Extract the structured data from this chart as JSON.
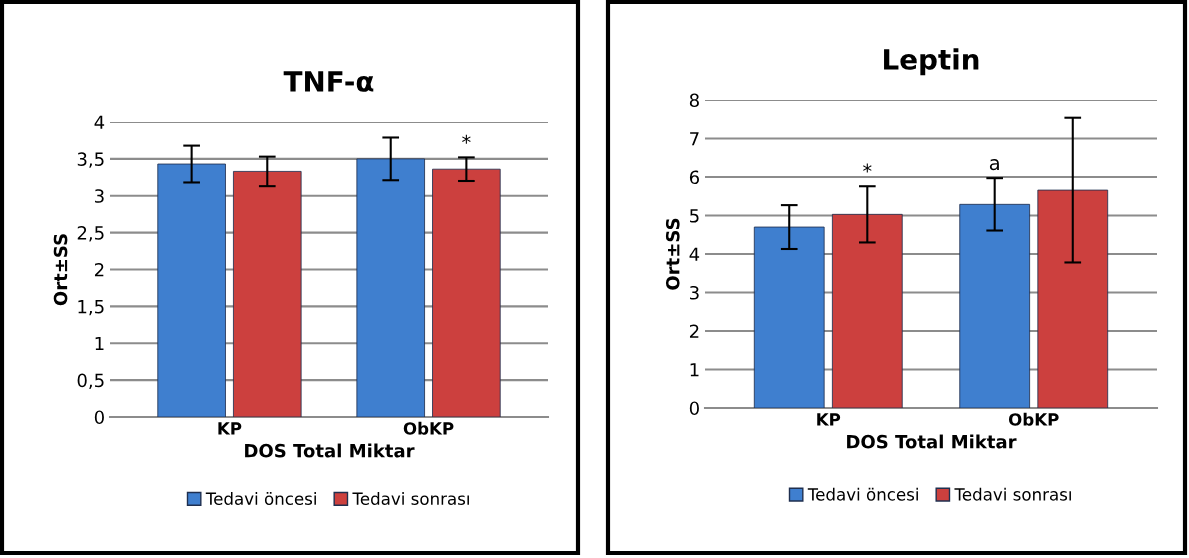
{
  "chart_data": [
    {
      "type": "bar",
      "title": "TNF-α",
      "xlabel": "DOS Total Miktar",
      "ylabel": "Ort±SS",
      "categories": [
        "KP",
        "ObKP"
      ],
      "series": [
        {
          "name": "Tedavi öncesi",
          "color": "#3f7fcf",
          "values": [
            3.43,
            3.5
          ],
          "errors": [
            0.25,
            0.29
          ]
        },
        {
          "name": "Tedavi sonrası",
          "color": "#cc403e",
          "values": [
            3.33,
            3.36
          ],
          "errors": [
            0.2,
            0.16
          ]
        }
      ],
      "ylim": [
        0,
        4
      ],
      "yticks": [
        0,
        {
          "value": 0.5,
          "label": "0,5"
        },
        1,
        {
          "value": 1.5,
          "label": "1,5"
        },
        2,
        {
          "value": 2.5,
          "label": "2,5"
        },
        3,
        {
          "value": 3.5,
          "label": "3,5"
        },
        4
      ],
      "annotations": [
        {
          "text": "*",
          "x": "ObKP",
          "y": 3.36
        }
      ],
      "grid": "y",
      "legend": "bottom"
    },
    {
      "type": "bar",
      "title": "Leptin",
      "xlabel": "DOS Total Miktar",
      "ylabel": "Ort±SS",
      "categories": [
        "KP",
        "ObKP"
      ],
      "series": [
        {
          "name": "Tedavi öncesi",
          "color": "#3f7fcf",
          "values": [
            4.7,
            5.29
          ],
          "errors": [
            0.57,
            0.68
          ]
        },
        {
          "name": "Tedavi sonrası",
          "color": "#cc403e",
          "values": [
            5.03,
            5.66
          ],
          "errors": [
            0.73,
            1.88
          ]
        }
      ],
      "ylim": [
        0,
        8
      ],
      "yticks": [
        0,
        1,
        2,
        3,
        4,
        5,
        6,
        7,
        8
      ],
      "annotations": [
        {
          "text": "*",
          "x": "KP",
          "y": 5.03
        },
        {
          "text": "a",
          "x": "ObKP",
          "y": 5.29
        }
      ],
      "grid": "y",
      "legend": "bottom"
    }
  ]
}
